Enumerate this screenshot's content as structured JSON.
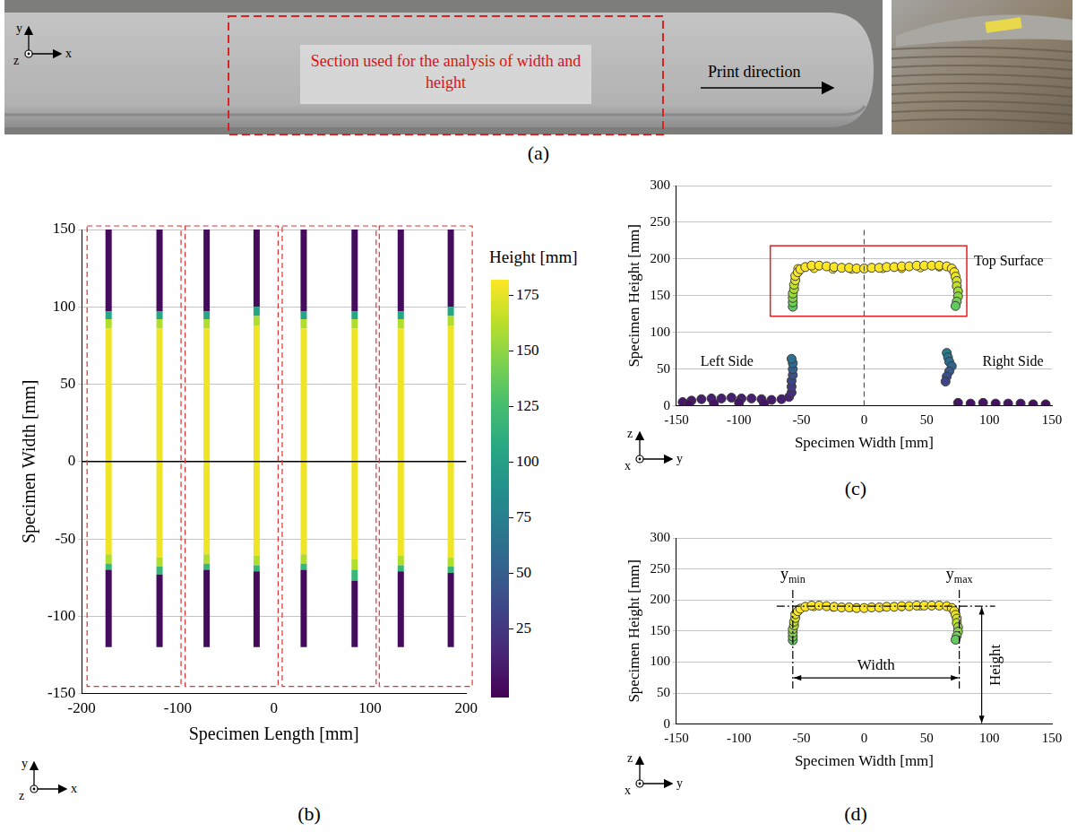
{
  "photo_panel": {
    "letter": "(a)",
    "annotation": "Section used for the analysis of width and height",
    "arrow_label": "Print direction",
    "axes_icon": {
      "up": "y",
      "out": "z",
      "right": "x"
    }
  },
  "chart_data": [
    {
      "letter": "(b)",
      "type": "heatmap",
      "x_label": "Specimen Length [mm]",
      "y_label": "Specimen Width [mm]",
      "xlim": [
        -200,
        200
      ],
      "xticks": [
        -200,
        -100,
        0,
        100,
        200
      ],
      "ylim": [
        -150,
        150
      ],
      "yticks": [
        -150,
        -100,
        -50,
        0,
        50,
        100,
        150
      ],
      "grid": true,
      "reference_line": {
        "y": 0
      },
      "axes_icon": {
        "up": "y",
        "out": "z",
        "right": "x"
      },
      "colorbar": {
        "title": "Height [mm]",
        "range": [
          -6,
          182
        ],
        "ticks": [
          25,
          50,
          75,
          100,
          125,
          150,
          175
        ]
      },
      "strips": [
        {
          "x": -172,
          "segments": [
            {
              "from": -120,
              "to": -70,
              "height": 0
            },
            {
              "from": -70,
              "to": -66,
              "height": 120
            },
            {
              "from": -66,
              "to": -60,
              "height": 160
            },
            {
              "from": -60,
              "to": 86,
              "height": 178
            },
            {
              "from": 86,
              "to": 92,
              "height": 160
            },
            {
              "from": 92,
              "to": 97,
              "height": 105
            },
            {
              "from": 97,
              "to": 150,
              "height": 0
            }
          ]
        },
        {
          "x": -119,
          "segments": [
            {
              "from": -120,
              "to": -73,
              "height": 0
            },
            {
              "from": -73,
              "to": -68,
              "height": 120
            },
            {
              "from": -68,
              "to": -62,
              "height": 160
            },
            {
              "from": -62,
              "to": 86,
              "height": 178
            },
            {
              "from": 86,
              "to": 92,
              "height": 160
            },
            {
              "from": 92,
              "to": 97,
              "height": 105
            },
            {
              "from": 97,
              "to": 150,
              "height": 0
            }
          ]
        },
        {
          "x": -70,
          "segments": [
            {
              "from": -120,
              "to": -70,
              "height": 0
            },
            {
              "from": -70,
              "to": -66,
              "height": 120
            },
            {
              "from": -66,
              "to": -60,
              "height": 160
            },
            {
              "from": -60,
              "to": 86,
              "height": 178
            },
            {
              "from": 86,
              "to": 92,
              "height": 160
            },
            {
              "from": 92,
              "to": 97,
              "height": 105
            },
            {
              "from": 97,
              "to": 150,
              "height": 0
            }
          ]
        },
        {
          "x": -18,
          "segments": [
            {
              "from": -120,
              "to": -71,
              "height": 0
            },
            {
              "from": -71,
              "to": -67,
              "height": 120
            },
            {
              "from": -67,
              "to": -61,
              "height": 160
            },
            {
              "from": -61,
              "to": 88,
              "height": 178
            },
            {
              "from": 88,
              "to": 94,
              "height": 160
            },
            {
              "from": 94,
              "to": 100,
              "height": 105
            },
            {
              "from": 100,
              "to": 150,
              "height": 0
            }
          ]
        },
        {
          "x": 31,
          "segments": [
            {
              "from": -120,
              "to": -70,
              "height": 0
            },
            {
              "from": -70,
              "to": -66,
              "height": 120
            },
            {
              "from": -66,
              "to": -60,
              "height": 160
            },
            {
              "from": -60,
              "to": 86,
              "height": 178
            },
            {
              "from": 86,
              "to": 92,
              "height": 160
            },
            {
              "from": 92,
              "to": 97,
              "height": 105
            },
            {
              "from": 97,
              "to": 150,
              "height": 0
            }
          ]
        },
        {
          "x": 84,
          "segments": [
            {
              "from": -120,
              "to": -77,
              "height": 0
            },
            {
              "from": -77,
              "to": -70,
              "height": 120
            },
            {
              "from": -70,
              "to": -63,
              "height": 160
            },
            {
              "from": -63,
              "to": 86,
              "height": 178
            },
            {
              "from": 86,
              "to": 92,
              "height": 160
            },
            {
              "from": 92,
              "to": 97,
              "height": 105
            },
            {
              "from": 97,
              "to": 150,
              "height": 0
            }
          ]
        },
        {
          "x": 132,
          "segments": [
            {
              "from": -120,
              "to": -71,
              "height": 0
            },
            {
              "from": -71,
              "to": -67,
              "height": 120
            },
            {
              "from": -67,
              "to": -61,
              "height": 160
            },
            {
              "from": -61,
              "to": 86,
              "height": 178
            },
            {
              "from": 86,
              "to": 92,
              "height": 160
            },
            {
              "from": 92,
              "to": 97,
              "height": 105
            },
            {
              "from": 97,
              "to": 150,
              "height": 0
            }
          ]
        },
        {
          "x": 184,
          "segments": [
            {
              "from": -120,
              "to": -72,
              "height": 0
            },
            {
              "from": -72,
              "to": -68,
              "height": 120
            },
            {
              "from": -68,
              "to": -62,
              "height": 160
            },
            {
              "from": -62,
              "to": 88,
              "height": 178
            },
            {
              "from": 88,
              "to": 94,
              "height": 160
            },
            {
              "from": 94,
              "to": 100,
              "height": 105
            },
            {
              "from": 100,
              "to": 150,
              "height": 0
            }
          ]
        }
      ]
    },
    {
      "letter": "(c)",
      "type": "scatter",
      "x_label": "Specimen Width [mm]",
      "y_label": "Specimen Height [mm]",
      "xlim": [
        -150,
        150
      ],
      "xticks": [
        -150,
        -100,
        -50,
        0,
        50,
        100,
        150
      ],
      "ylim": [
        0,
        300
      ],
      "yticks": [
        0,
        50,
        100,
        150,
        200,
        250,
        300
      ],
      "grid": true,
      "reference_line": {
        "x": 0
      },
      "region": {
        "label": "Top Surface",
        "x_range": [
          -75,
          82
        ],
        "y_range": [
          122,
          218
        ]
      },
      "side_labels": {
        "left": "Left Side",
        "right": "Right Side"
      },
      "axes_icon": {
        "up": "z",
        "out": "x",
        "right": "y"
      },
      "series": [
        {
          "color": "viridis",
          "marker": "circle",
          "x": [
            -57,
            -57,
            -57,
            -57,
            -56,
            -56,
            -55,
            -55,
            -53,
            -51,
            -47,
            -42,
            -36,
            -30,
            -24,
            -18,
            -12,
            -6,
            0,
            6,
            12,
            18,
            24,
            30,
            36,
            42,
            48,
            54,
            60,
            66,
            70,
            72,
            73,
            74,
            74,
            75,
            75,
            74,
            73
          ],
          "values": [
            135,
            141,
            147,
            153,
            159,
            165,
            171,
            177,
            182,
            186,
            189,
            191,
            191,
            190,
            189,
            188,
            188,
            187,
            187,
            188,
            188,
            189,
            189,
            190,
            190,
            191,
            191,
            191,
            191,
            190,
            187,
            182,
            176,
            170,
            163,
            156,
            149,
            142,
            136
          ]
        },
        {
          "color": "viridis",
          "marker": "circle",
          "x": [
            -145,
            -138,
            -130,
            -122,
            -114,
            -106,
            -98,
            -90,
            -82,
            -74,
            -66,
            -60,
            -58,
            -58,
            -58,
            -57,
            -57,
            -57,
            -58,
            -140,
            -120,
            -100,
            -80,
            66,
            67,
            68,
            70,
            68,
            66,
            65,
            75,
            85,
            95,
            105,
            115,
            125,
            135,
            145
          ],
          "values": [
            5,
            7,
            9,
            10,
            10,
            11,
            10,
            10,
            9,
            8,
            9,
            12,
            18,
            26,
            34,
            42,
            50,
            58,
            64,
            2,
            3,
            4,
            3,
            72,
            66,
            60,
            54,
            47,
            40,
            33,
            4,
            3,
            4,
            3,
            3,
            3,
            2,
            2
          ]
        },
        {
          "color": "#fde725",
          "marker": "circle",
          "x": [
            -53,
            -40,
            -25,
            -10,
            15,
            30,
            45,
            60
          ],
          "values": [
            187,
            187,
            186,
            186,
            187,
            187,
            188,
            189
          ]
        }
      ]
    },
    {
      "letter": "(d)",
      "type": "scatter",
      "x_label": "Specimen Width [mm]",
      "y_label": "Specimen Height [mm]",
      "xlim": [
        -150,
        150
      ],
      "xticks": [
        -150,
        -100,
        -50,
        0,
        50,
        100,
        150
      ],
      "ylim": [
        0,
        300
      ],
      "yticks": [
        0,
        50,
        100,
        150,
        200,
        250,
        300
      ],
      "grid": true,
      "axes_icon": {
        "up": "z",
        "out": "x",
        "right": "y"
      },
      "dimensions": {
        "y_min": {
          "value": -57,
          "base": "y",
          "sub": "min"
        },
        "y_max": {
          "value": 76,
          "base": "y",
          "sub": "max"
        },
        "height": 190,
        "width_label": "Width",
        "height_label": "Height"
      },
      "series": [
        {
          "color": "viridis",
          "marker": "circle",
          "x": [
            -57,
            -57,
            -57,
            -57,
            -56,
            -56,
            -55,
            -55,
            -53,
            -51,
            -47,
            -42,
            -36,
            -30,
            -24,
            -18,
            -12,
            -6,
            0,
            6,
            12,
            18,
            24,
            30,
            36,
            42,
            48,
            54,
            60,
            66,
            70,
            72,
            73,
            74,
            74,
            75,
            75,
            74,
            73
          ],
          "values": [
            135,
            141,
            147,
            153,
            159,
            165,
            171,
            177,
            182,
            186,
            189,
            191,
            191,
            190,
            189,
            188,
            188,
            187,
            187,
            188,
            188,
            189,
            189,
            190,
            190,
            191,
            191,
            191,
            191,
            190,
            187,
            182,
            176,
            170,
            163,
            156,
            149,
            142,
            136
          ]
        },
        {
          "color": "#fde725",
          "marker": "circle",
          "x": [
            -53,
            -40,
            -25,
            -10,
            15,
            30,
            45,
            60
          ],
          "values": [
            187,
            187,
            186,
            186,
            187,
            187,
            188,
            189
          ]
        }
      ]
    }
  ]
}
